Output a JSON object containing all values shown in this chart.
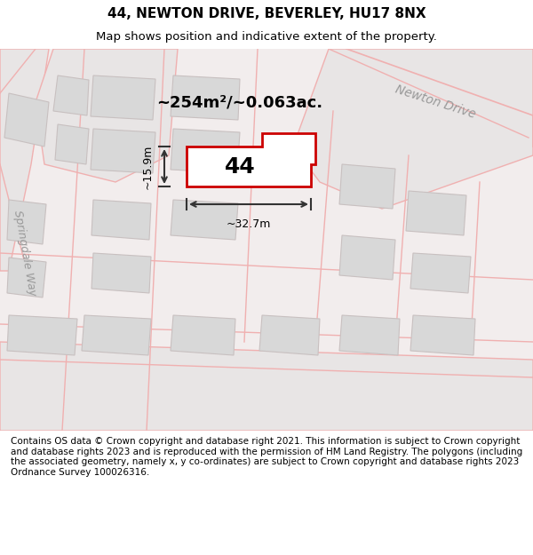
{
  "title": "44, NEWTON DRIVE, BEVERLEY, HU17 8NX",
  "subtitle": "Map shows position and indicative extent of the property.",
  "footer": "Contains OS data © Crown copyright and database right 2021. This information is subject to Crown copyright and database rights 2023 and is reproduced with the permission of HM Land Registry. The polygons (including the associated geometry, namely x, y co-ordinates) are subject to Crown copyright and database rights 2023 Ordnance Survey 100026316.",
  "area_label": "~254m²/~0.063ac.",
  "width_label": "~32.7m",
  "height_label": "~15.9m",
  "number_label": "44",
  "road_label_1": "Newton Drive",
  "road_label_2": "Springdale Way",
  "bg_color": "#f5f0f0",
  "map_bg": "#f5f0f0",
  "road_fill": "#e8e8e8",
  "building_fill": "#d8d8d8",
  "plot_fill": "#ffffff",
  "plot_stroke": "#cc0000",
  "road_line": "#f0b0b0",
  "dim_color": "#333333",
  "figsize": [
    6.0,
    6.25
  ],
  "dpi": 100,
  "title_fontsize": 11,
  "subtitle_fontsize": 9.5,
  "footer_fontsize": 7.5
}
